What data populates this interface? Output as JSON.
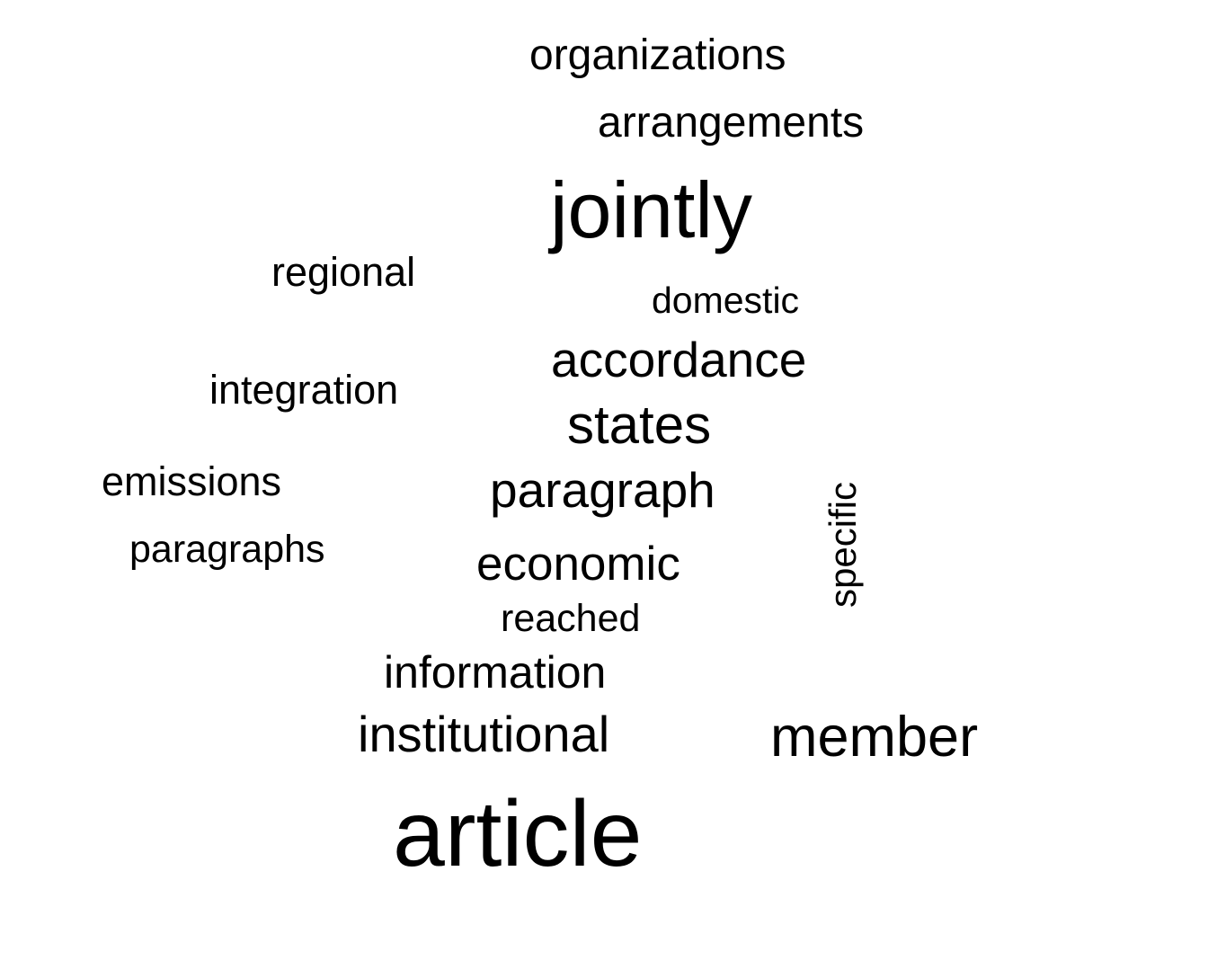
{
  "word_cloud": {
    "words": {
      "organizations": "organizations",
      "arrangements": "arrangements",
      "jointly": "jointly",
      "regional": "regional",
      "domestic": "domestic",
      "accordance": "accordance",
      "integration": "integration",
      "states": "states",
      "emissions": "emissions",
      "paragraph": "paragraph",
      "specific": "specific",
      "paragraphs": "paragraphs",
      "economic": "economic",
      "reached": "reached",
      "information": "information",
      "institutional": "institutional",
      "member": "member",
      "article": "article"
    },
    "text_color": "#000000",
    "background_color": "#ffffff"
  }
}
